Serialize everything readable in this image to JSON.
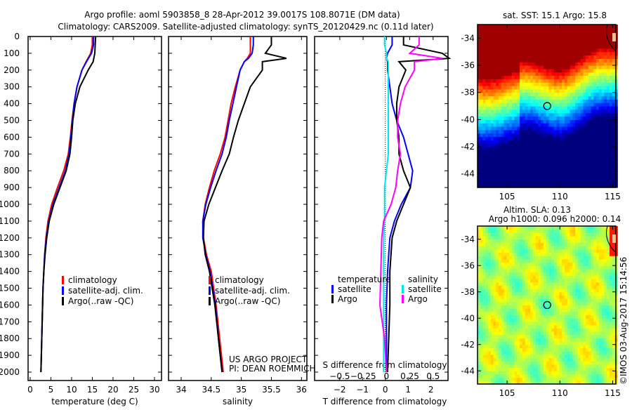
{
  "title": {
    "line1": "Argo profile: aoml 5903858_8 28-Apr-2012 39.0017S 108.8071E (DM data)",
    "line2": "Climatology: CARS2009. Satellite-adjusted climatology: synTS_20120429.nc (0.11d later)"
  },
  "colors": {
    "climatology": "#ff0000",
    "satellite": "#0000ff",
    "argo": "#000000",
    "sal_satellite": "#00e5e5",
    "sal_argo": "#ff00ff"
  },
  "chart_data": [
    {
      "type": "line",
      "name": "temperature",
      "xlabel": "temperature (deg C)",
      "xlim": [
        -0.5,
        31.7
      ],
      "ylim": [
        2050,
        0
      ],
      "xticks": [
        0,
        5,
        10,
        15,
        20,
        25,
        30
      ],
      "yticks": [
        0,
        100,
        200,
        300,
        400,
        500,
        600,
        700,
        800,
        900,
        1000,
        1100,
        1200,
        1300,
        1400,
        1500,
        1600,
        1700,
        1800,
        1900,
        2000
      ],
      "legend": [
        "climatology",
        "satellite-adj. clim.",
        "Argo(..raw -QC)"
      ],
      "depth": [
        0,
        50,
        100,
        150,
        200,
        300,
        400,
        500,
        600,
        700,
        800,
        900,
        1000,
        1100,
        1200,
        1300,
        1400,
        1500,
        1700,
        2000
      ],
      "series": [
        {
          "name": "climatology",
          "color": "#ff0000",
          "values": [
            15.0,
            15.0,
            14.6,
            13.5,
            12.5,
            11.3,
            10.6,
            10.1,
            9.7,
            9.2,
            8.1,
            6.6,
            5.2,
            4.3,
            3.8,
            3.5,
            3.3,
            3.1,
            2.9,
            2.6
          ]
        },
        {
          "name": "satellite-adj. clim.",
          "color": "#0000ff",
          "values": [
            15.3,
            15.3,
            14.8,
            13.6,
            12.5,
            11.3,
            10.6,
            10.2,
            9.8,
            9.4,
            8.5,
            7.0,
            5.5,
            4.5,
            3.9,
            3.5,
            3.3,
            3.1,
            2.9,
            2.6
          ]
        },
        {
          "name": "Argo(..raw -QC)",
          "color": "#000000",
          "values": [
            15.8,
            15.7,
            15.6,
            15.2,
            14.0,
            12.0,
            10.9,
            10.3,
            10.0,
            9.6,
            8.7,
            7.2,
            5.7,
            4.6,
            4.0,
            3.6,
            3.3,
            3.1,
            2.9,
            2.6
          ]
        }
      ]
    },
    {
      "type": "line",
      "name": "salinity",
      "xlabel": "salinity",
      "xlim": [
        33.79,
        36.09
      ],
      "ylim": [
        2050,
        0
      ],
      "xticks": [
        34,
        34.5,
        35,
        35.5,
        36
      ],
      "legend": [
        "climatology",
        "satellite-adj. clim.",
        "Argo(..raw -QC)"
      ],
      "annotation": [
        "US ARGO PROJECT",
        "PI: DEAN ROEMMICH"
      ],
      "depth": [
        0,
        50,
        100,
        130,
        150,
        200,
        300,
        400,
        500,
        600,
        700,
        800,
        900,
        1000,
        1100,
        1200,
        1300,
        1400,
        1600,
        1800,
        2000
      ],
      "series": [
        {
          "name": "climatology",
          "color": "#ff0000",
          "values": [
            35.15,
            35.15,
            35.15,
            35.1,
            35.05,
            34.98,
            34.9,
            34.83,
            34.78,
            34.73,
            34.65,
            34.55,
            34.47,
            34.4,
            34.36,
            34.37,
            34.42,
            34.5,
            34.58,
            34.64,
            34.7
          ]
        },
        {
          "name": "satellite-adj. clim.",
          "color": "#0000ff",
          "values": [
            35.2,
            35.2,
            35.18,
            35.12,
            35.05,
            34.98,
            34.92,
            34.86,
            34.8,
            34.75,
            34.68,
            34.58,
            34.49,
            34.41,
            34.36,
            34.36,
            34.41,
            34.48,
            34.57,
            34.62,
            34.68
          ]
        },
        {
          "name": "Argo(..raw -QC)",
          "color": "#000000",
          "values": [
            35.5,
            35.5,
            35.4,
            35.75,
            35.35,
            35.35,
            35.15,
            35.05,
            34.95,
            34.87,
            34.8,
            34.68,
            34.57,
            34.46,
            34.38,
            34.37,
            34.4,
            34.47,
            34.56,
            34.62,
            34.68
          ]
        }
      ]
    },
    {
      "type": "line",
      "name": "differences",
      "xlabel": "T difference from climatology",
      "xlim": [
        -3.1,
        2.75
      ],
      "xticks": [
        -2,
        -1,
        0,
        1,
        2
      ],
      "s_label": "S difference from climatology",
      "s_xlim": [
        -0.77,
        0.66
      ],
      "s_xticks": [
        -0.5,
        -0.25,
        0,
        0.25,
        0.5
      ],
      "legend": {
        "temperature": "temperature",
        "salinity": "salinity",
        "t_sat": "satellite",
        "t_argo": "Argo",
        "s_sat": "satellite",
        "s_argo": "Argo"
      },
      "depth": [
        0,
        50,
        100,
        130,
        150,
        200,
        300,
        400,
        500,
        600,
        700,
        800,
        900,
        1000,
        1100,
        1200,
        1400,
        1600,
        1800,
        2000
      ],
      "series": [
        {
          "name": "T satellite",
          "color": "#0000ff",
          "values": [
            0.3,
            0.3,
            0.1,
            0.05,
            0.1,
            0.1,
            0.2,
            0.3,
            0.5,
            0.8,
            1.0,
            1.2,
            1.1,
            0.7,
            0.4,
            0.2,
            0.1,
            0.05,
            0.05,
            0.05
          ]
        },
        {
          "name": "T Argo",
          "color": "#000000",
          "values": [
            0.8,
            0.8,
            2.5,
            2.8,
            0.6,
            0.9,
            0.6,
            0.5,
            0.5,
            0.6,
            0.6,
            0.8,
            1.1,
            0.8,
            0.5,
            0.3,
            0.2,
            0.2,
            0.15,
            0.1
          ]
        },
        {
          "name": "S satellite",
          "color": "#00e5e5",
          "values": [
            -0.02,
            -0.02,
            0,
            0,
            0.02,
            0.02,
            0.02,
            0.02,
            0.02,
            0.02,
            0.02,
            0,
            -0.02,
            -0.02,
            -0.02,
            -0.03,
            -0.03,
            -0.03,
            -0.03,
            -0.03
          ]
        },
        {
          "name": "S Argo",
          "color": "#ff00ff",
          "values": [
            0.35,
            0.35,
            0.25,
            0.6,
            0.3,
            0.3,
            0.2,
            0.15,
            0.12,
            0.12,
            0.15,
            0.12,
            0.1,
            0.05,
            -0.03,
            -0.05,
            -0.06,
            -0.07,
            -0.02,
            0
          ]
        }
      ]
    },
    {
      "type": "heatmap",
      "name": "sst-map",
      "title": "sat. SST: 15.1 Argo: 15.8",
      "xlim": [
        102.2,
        115.3
      ],
      "ylim": [
        -45,
        -33
      ],
      "xticks": [
        105,
        110,
        115
      ],
      "yticks": [
        -34,
        -36,
        -38,
        -40,
        -42,
        -44
      ],
      "marker": {
        "lon": 108.8,
        "lat": -39.0
      }
    },
    {
      "type": "heatmap",
      "name": "sla-map",
      "title": "Altim. SLA: 0.13",
      "subtitle": "Argo h1000: 0.096 h2000: 0.14",
      "xlim": [
        102.2,
        115.3
      ],
      "ylim": [
        -45,
        -33
      ],
      "xticks": [
        105,
        110,
        115
      ],
      "yticks": [
        -34,
        -36,
        -38,
        -40,
        -42,
        -44
      ],
      "marker": {
        "lon": 108.8,
        "lat": -39.0
      }
    }
  ],
  "credit": "©IMOS 03-Aug-2017 15:14:56"
}
